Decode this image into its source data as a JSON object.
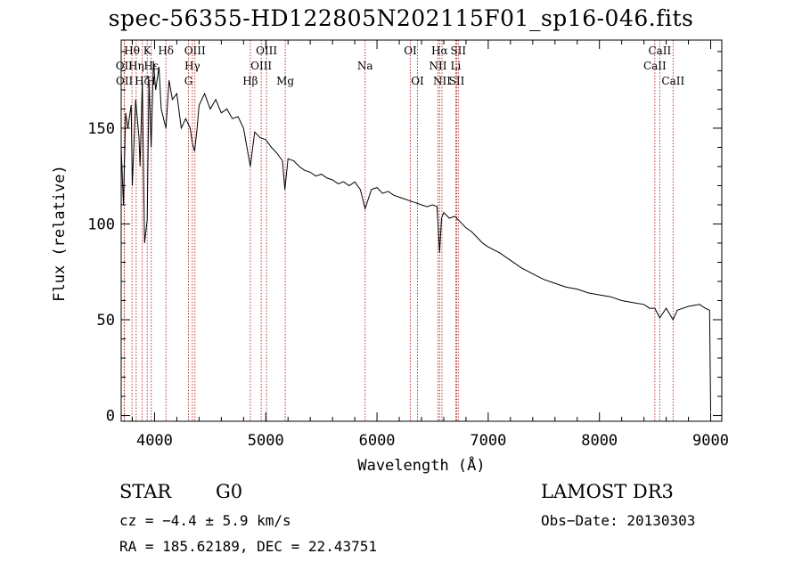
{
  "chart_data": {
    "type": "line",
    "title": "spec-56355-HD122805N202115F01_sp16-046.fits",
    "xlabel": "Wavelength (Å)",
    "ylabel": "Flux (relative)",
    "xlim": [
      3700,
      9100
    ],
    "ylim": [
      -3,
      196
    ],
    "xticks": [
      4000,
      5000,
      6000,
      7000,
      8000,
      9000
    ],
    "yticks": [
      0,
      50,
      100,
      150
    ],
    "x": [
      3700,
      3720,
      3740,
      3760,
      3790,
      3800,
      3830,
      3860,
      3870,
      3890,
      3910,
      3934,
      3950,
      3969,
      3990,
      4010,
      4040,
      4060,
      4102,
      4130,
      4160,
      4200,
      4240,
      4280,
      4320,
      4340,
      4360,
      4383,
      4400,
      4450,
      4500,
      4550,
      4600,
      4650,
      4700,
      4750,
      4800,
      4861,
      4900,
      4950,
      5000,
      5050,
      5100,
      5150,
      5172,
      5200,
      5250,
      5300,
      5350,
      5400,
      5450,
      5500,
      5550,
      5600,
      5650,
      5700,
      5750,
      5800,
      5850,
      5893,
      5950,
      6000,
      6050,
      6100,
      6150,
      6200,
      6250,
      6300,
      6350,
      6400,
      6450,
      6500,
      6540,
      6563,
      6580,
      6600,
      6650,
      6700,
      6750,
      6800,
      6850,
      6900,
      6950,
      7000,
      7100,
      7200,
      7300,
      7400,
      7500,
      7600,
      7700,
      7800,
      7900,
      8000,
      8100,
      8200,
      8300,
      8400,
      8450,
      8498,
      8542,
      8600,
      8662,
      8700,
      8800,
      8900,
      8950,
      8990,
      9000
    ],
    "values": [
      140,
      110,
      158,
      150,
      162,
      120,
      165,
      145,
      130,
      175,
      90,
      102,
      175,
      140,
      185,
      170,
      182,
      160,
      150,
      175,
      165,
      168,
      150,
      155,
      150,
      142,
      138,
      150,
      162,
      168,
      160,
      165,
      158,
      160,
      155,
      156,
      150,
      130,
      148,
      145,
      144,
      140,
      137,
      133,
      118,
      134,
      133,
      130,
      128,
      127,
      125,
      126,
      124,
      123,
      121,
      122,
      120,
      122,
      118,
      108,
      118,
      119,
      116,
      117,
      115,
      114,
      113,
      112,
      111,
      110,
      109,
      110,
      109,
      85,
      103,
      106,
      103,
      104,
      101,
      98,
      96,
      93,
      90,
      88,
      85,
      81,
      77,
      74,
      71,
      69,
      67,
      66,
      64,
      63,
      62,
      60,
      59,
      58,
      56,
      56,
      51,
      56,
      50,
      55,
      57,
      58,
      56,
      55,
      2
    ],
    "lines_top": [
      {
        "label": "Hθ",
        "x": 3797
      },
      {
        "label": "K",
        "x": 3934
      },
      {
        "label": "Hδ",
        "x": 4102
      },
      {
        "label": "OIII",
        "x": 4363
      },
      {
        "label": "OIII",
        "x": 5007
      },
      {
        "label": "OI",
        "x": 6300
      },
      {
        "label": "Hα",
        "x": 6563
      },
      {
        "label": "SII",
        "x": 6731
      },
      {
        "label": "CaII",
        "x": 8542
      }
    ],
    "lines_mid": [
      {
        "label": "OII",
        "x": 3727
      },
      {
        "label": "Hη",
        "x": 3835
      },
      {
        "label": "Hε",
        "x": 3970
      },
      {
        "label": "OIII",
        "x": 4959
      },
      {
        "label": "Hγ",
        "x": 4340
      },
      {
        "label": "Na",
        "x": 5893
      },
      {
        "label": "NII",
        "x": 6548
      },
      {
        "label": "Li",
        "x": 6708
      },
      {
        "label": "CaII",
        "x": 8498
      }
    ],
    "lines_low": [
      {
        "label": "OII",
        "x": 3729
      },
      {
        "label": "Hζ",
        "x": 3889
      },
      {
        "label": "H",
        "x": 3969
      },
      {
        "label": "G",
        "x": 4305
      },
      {
        "label": "Hβ",
        "x": 4861
      },
      {
        "label": "Mg",
        "x": 5175
      },
      {
        "label": "OI",
        "x": 6364
      },
      {
        "label": "NII",
        "x": 6584
      },
      {
        "label": "SII",
        "x": 6717
      },
      {
        "label": "CaII",
        "x": 8662
      }
    ]
  },
  "info": {
    "object_class": "STAR",
    "subclass": "G0",
    "cz": "cz = −4.4 ± 5.9 km/s",
    "radec": "RA = 185.62189, DEC =  22.43751",
    "survey": "LAMOST DR3",
    "obs_date": "Obs−Date: 20130303"
  },
  "colors": {
    "line_marker": "#b22222",
    "spectrum": "#000000"
  }
}
